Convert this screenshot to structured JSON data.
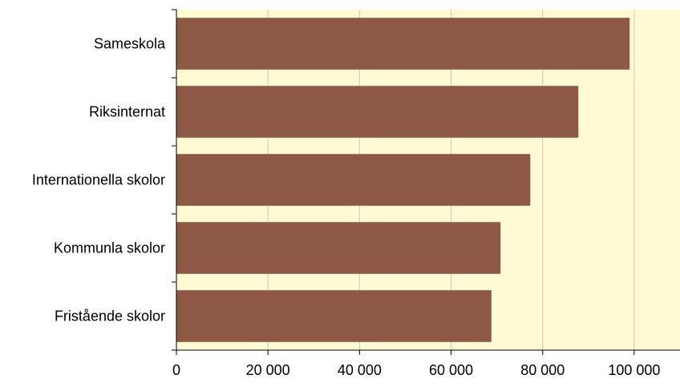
{
  "chart_data": {
    "type": "bar",
    "orientation": "horizontal",
    "categories": [
      "Sameskola",
      "Riksinternat",
      "Internationella skolor",
      "Kommunla skolor",
      "Fristående skolor"
    ],
    "values": [
      99000,
      87800,
      77300,
      70800,
      68800
    ],
    "title": "",
    "xlabel": "",
    "ylabel": "",
    "xlim": [
      0,
      110000
    ],
    "xticks": [
      0,
      20000,
      40000,
      60000,
      80000,
      100000
    ],
    "xtick_labels": [
      "0",
      "20 000",
      "40 000",
      "60 000",
      "80 000",
      "100 000"
    ],
    "grid": "vertical",
    "legend": "none"
  },
  "colors": {
    "bar": "#8E5846",
    "plot_background": "#FFF9D4",
    "gridline": "#C8C8C8",
    "axis": "#000000"
  }
}
